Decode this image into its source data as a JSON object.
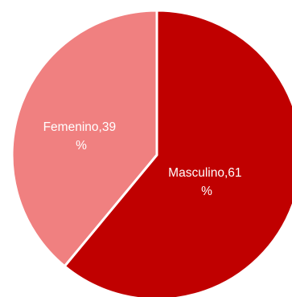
{
  "chart_data": {
    "type": "pie",
    "title": "",
    "slices": [
      {
        "label": "Masculino",
        "value": 61,
        "unit": "%",
        "label_line1": "Masculino,61",
        "label_line2": "%",
        "color": "#c00000"
      },
      {
        "label": "Femenino",
        "value": 39,
        "unit": "%",
        "label_line1": "Femenino,39",
        "label_line2": "%",
        "color": "#f08080"
      }
    ],
    "start_angle": "12 o'clock, clockwise",
    "legend": "none",
    "separator_color": "#ffffff"
  }
}
